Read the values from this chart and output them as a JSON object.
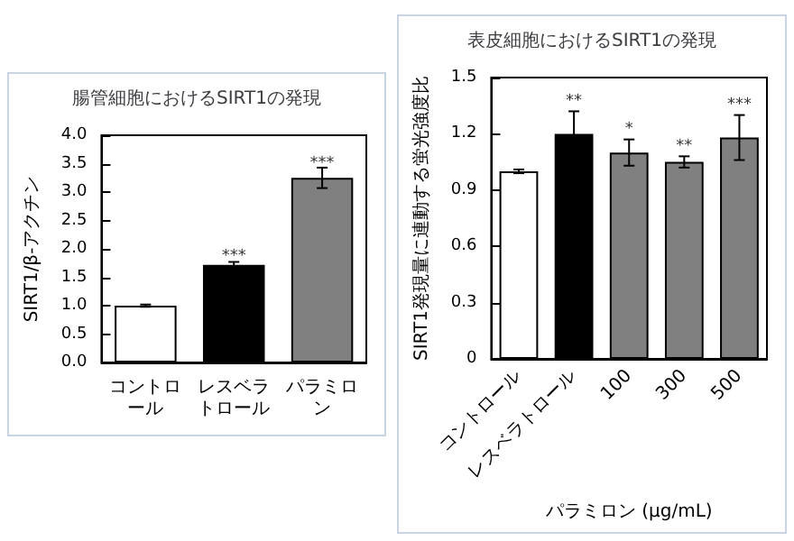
{
  "chart_data": [
    {
      "type": "bar",
      "title": "腸管細胞におけるSIRT1の発現",
      "ylabel": "SIRT1/β-アクチン",
      "categories": [
        "コントロール",
        "レスベラトロール",
        "パラミロン"
      ],
      "values": [
        1.0,
        1.72,
        3.25
      ],
      "colors": [
        "#ffffff",
        "#000000",
        "#808080"
      ],
      "errors": [
        0.02,
        0.05,
        0.18
      ],
      "ylim": [
        0,
        4
      ],
      "yticks": [
        {
          "value": 0,
          "label": "0.0"
        },
        {
          "value": 0.5,
          "label": "0.5"
        },
        {
          "value": 1,
          "label": "1.0"
        },
        {
          "value": 1.5,
          "label": "1.5"
        },
        {
          "value": 2,
          "label": "2.0"
        },
        {
          "value": 2.5,
          "label": "2.5"
        },
        {
          "value": 3,
          "label": "3.0"
        },
        {
          "value": 3.5,
          "label": "3.5"
        },
        {
          "value": 4,
          "label": "4.0"
        }
      ],
      "grid": false,
      "annotations": [
        {
          "text": "***",
          "x": "レスベラトロール",
          "y": 1.85
        },
        {
          "text": "***",
          "x": "パラミロン",
          "y": 3.5
        }
      ]
    },
    {
      "type": "bar",
      "title": "表皮細胞におけるSIRT1の発現",
      "ylabel": "SIRT1発現量に連動する蛍光強度比",
      "xlabel": "パラミロン (μg/mL)",
      "categories": [
        "コントロール",
        "レスベラトロール",
        "100",
        "300",
        "500"
      ],
      "values": [
        1.0,
        1.2,
        1.1,
        1.05,
        1.18
      ],
      "colors": [
        "#ffffff",
        "#000000",
        "#808080",
        "#808080",
        "#808080"
      ],
      "errors": [
        0.01,
        0.12,
        0.07,
        0.03,
        0.12
      ],
      "ylim": [
        0,
        1.5
      ],
      "yticks": [
        0,
        0.3,
        0.6,
        0.9,
        1.2,
        1.5
      ],
      "grid": false,
      "annotations": [
        {
          "text": "**",
          "x": "レスベラトロール",
          "y": 1.37
        },
        {
          "text": "*",
          "x": "100",
          "y": 1.22
        },
        {
          "text": "**",
          "x": "300",
          "y": 1.13
        },
        {
          "text": "***",
          "x": "500",
          "y": 1.35
        }
      ]
    }
  ]
}
